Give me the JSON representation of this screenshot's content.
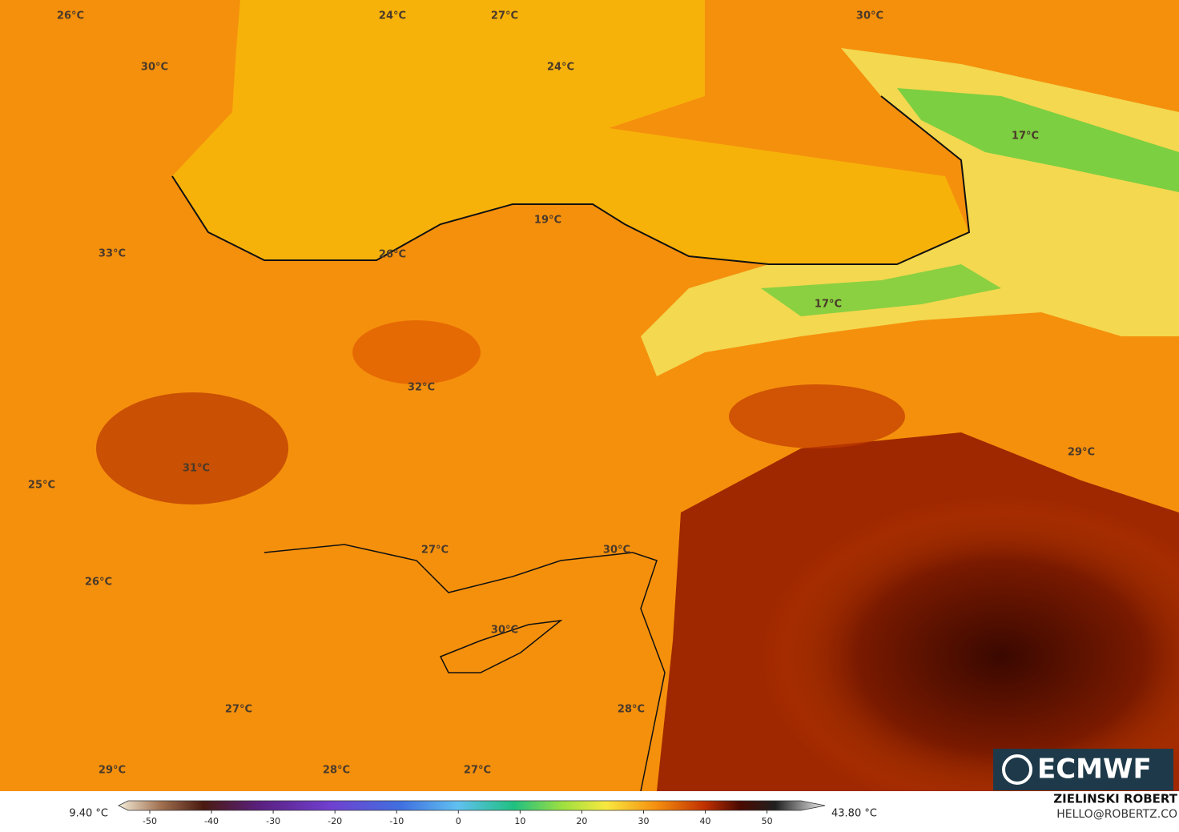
{
  "map": {
    "labels": [
      "26°C",
      "24°C",
      "27°C",
      "30°C",
      "30°C",
      "24°C",
      "17°C",
      "19°C",
      "33°C",
      "26°C",
      "17°C",
      "32°C",
      "31°C",
      "29°C",
      "25°C",
      "27°C",
      "30°C",
      "26°C",
      "30°C",
      "27°C",
      "28°C",
      "29°C",
      "28°C",
      "27°C"
    ]
  },
  "brand": "ECMWF",
  "author": "ZIELINSKI ROBERT",
  "email": "HELLO@ROBERTZ.CO",
  "colorbar": {
    "min_label": "9.40 °C",
    "max_label": "43.80 °C",
    "lim": [
      -53.5,
      55.5
    ],
    "ticks": [
      -50,
      -40,
      -30,
      -20,
      -10,
      0,
      10,
      20,
      30,
      40,
      50
    ]
  }
}
